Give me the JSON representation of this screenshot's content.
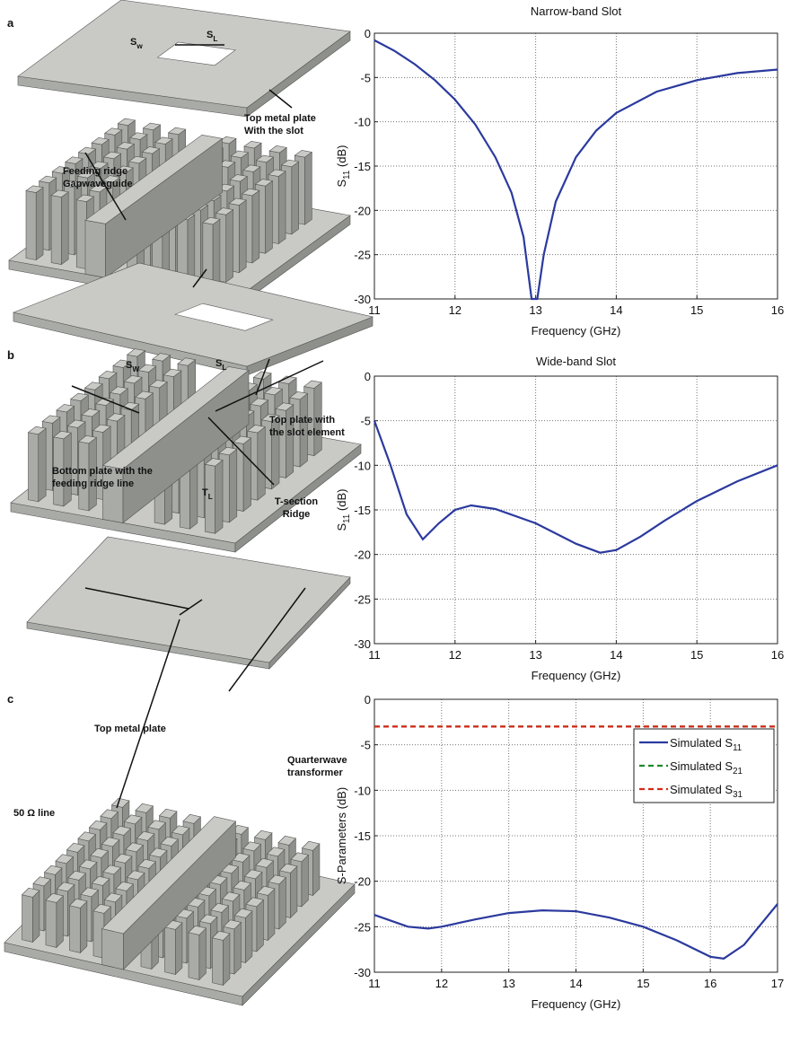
{
  "panel_labels": [
    "a",
    "b",
    "c"
  ],
  "illustration_a": {
    "sw": [
      "S",
      "w"
    ],
    "sl": [
      "S",
      "L"
    ],
    "plate": [
      "Top metal plate",
      "With the slot"
    ],
    "ridge": [
      "Feeding ridge",
      "Gapwaveguide"
    ]
  },
  "illustration_b": {
    "sw": [
      "S",
      "W"
    ],
    "sl": [
      "S",
      "L"
    ],
    "plate": [
      "Top plate with",
      "the slot element"
    ],
    "bottom": [
      "Bottom plate with the",
      "feeding ridge line"
    ],
    "tl": [
      "T",
      "L"
    ],
    "tsec": [
      "T-section",
      "Ridge"
    ]
  },
  "illustration_c": {
    "plate": "Top metal plate",
    "line": "50 Ω line",
    "qw": [
      "Quarterwave",
      "transformer"
    ]
  },
  "chart_data": [
    {
      "type": "line",
      "title": "Narrow-band Slot",
      "xlabel": "Frequency (GHz)",
      "ylabel": [
        "S",
        "11",
        " (dB)"
      ],
      "x": [
        11,
        11.25,
        11.5,
        11.75,
        12,
        12.25,
        12.5,
        12.7,
        12.85,
        12.95,
        13.02,
        13.1,
        13.25,
        13.5,
        13.75,
        14,
        14.5,
        15,
        15.5,
        16
      ],
      "series": [
        {
          "color": "#2b3a9e",
          "values": [
            -0.8,
            -2,
            -3.5,
            -5.3,
            -7.5,
            -10.3,
            -14,
            -18,
            -23,
            -30,
            -30,
            -25,
            -19,
            -14,
            -11,
            -9,
            -6.6,
            -5.3,
            -4.5,
            -4.1
          ]
        }
      ],
      "xlim": [
        11,
        16
      ],
      "ylim": [
        -30,
        0
      ],
      "xticks": [
        11,
        12,
        13,
        14,
        15,
        16
      ],
      "yticks": [
        0,
        -5,
        -10,
        -15,
        -20,
        -25,
        -30
      ],
      "grid": true
    },
    {
      "type": "line",
      "title": "Wide-band Slot",
      "xlabel": "Frequency (GHz)",
      "ylabel": [
        "S",
        "11",
        " (dB)"
      ],
      "x": [
        11,
        11.2,
        11.4,
        11.6,
        11.8,
        12,
        12.2,
        12.5,
        13,
        13.5,
        13.8,
        14,
        14.3,
        14.6,
        15,
        15.5,
        16
      ],
      "series": [
        {
          "color": "#2b3a9e",
          "values": [
            -5,
            -10,
            -15.5,
            -18.3,
            -16.5,
            -15,
            -14.5,
            -14.9,
            -16.5,
            -18.8,
            -19.8,
            -19.5,
            -18,
            -16.2,
            -14,
            -11.8,
            -10
          ]
        }
      ],
      "xlim": [
        11,
        16
      ],
      "ylim": [
        -30,
        0
      ],
      "xticks": [
        11,
        12,
        13,
        14,
        15,
        16
      ],
      "yticks": [
        0,
        -5,
        -10,
        -15,
        -20,
        -25,
        -30
      ],
      "grid": true
    },
    {
      "type": "line",
      "xlabel": "Frequency (GHz)",
      "ylabel": "S-Parameters (dB)",
      "x": [
        11,
        11.5,
        11.8,
        12,
        12.5,
        13,
        13.5,
        14,
        14.5,
        15,
        15.5,
        16,
        16.2,
        16.5,
        17
      ],
      "series": [
        {
          "name": [
            "Simulated S",
            "11"
          ],
          "color": "#2b3a9e",
          "linestyle": "solid",
          "values": [
            -23.7,
            -25,
            -25.2,
            -25,
            -24.2,
            -23.5,
            -23.2,
            -23.3,
            -24,
            -25,
            -26.5,
            -28.3,
            -28.5,
            -27,
            -22.5
          ]
        },
        {
          "name": [
            "Simulated S",
            "21"
          ],
          "color": "#1f8a2a",
          "linestyle": "dashed",
          "values": [
            -3,
            -3,
            -3,
            -3,
            -3,
            -3,
            -3,
            -3,
            -3,
            -3,
            -3,
            -3,
            -3,
            -3,
            -3
          ]
        },
        {
          "name": [
            "Simulated S",
            "31"
          ],
          "color": "#d42a1a",
          "linestyle": "dashed",
          "values": [
            -3,
            -3,
            -3,
            -3,
            -3,
            -3,
            -3,
            -3,
            -3,
            -3,
            -3,
            -3,
            -3,
            -3,
            -3
          ]
        }
      ],
      "xlim": [
        11,
        17
      ],
      "ylim": [
        -30,
        0
      ],
      "xticks": [
        11,
        12,
        13,
        14,
        15,
        16,
        17
      ],
      "yticks": [
        0,
        -5,
        -10,
        -15,
        -20,
        -25,
        -30
      ],
      "grid": true,
      "legend": "upper right"
    }
  ]
}
